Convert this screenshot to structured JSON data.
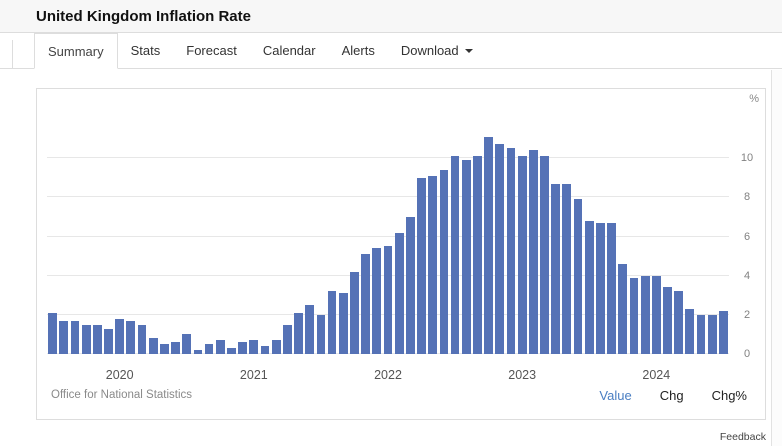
{
  "header": {
    "title": "United Kingdom Inflation Rate"
  },
  "tabs": [
    {
      "label": "Summary",
      "active": true
    },
    {
      "label": "Stats",
      "active": false
    },
    {
      "label": "Forecast",
      "active": false
    },
    {
      "label": "Calendar",
      "active": false
    },
    {
      "label": "Alerts",
      "active": false
    },
    {
      "label": "Download",
      "active": false,
      "has_caret": true
    }
  ],
  "chart_data": {
    "type": "bar",
    "title": "United Kingdom Inflation Rate",
    "unit": "%",
    "bar_color": "#5572b6",
    "grid": true,
    "ylim": [
      0,
      12
    ],
    "yticks": [
      0,
      2,
      4,
      6,
      8,
      10
    ],
    "xticks": [
      "2020",
      "2021",
      "2022",
      "2023",
      "2024"
    ],
    "x": [
      "2019-07",
      "2019-08",
      "2019-09",
      "2019-10",
      "2019-11",
      "2019-12",
      "2020-01",
      "2020-02",
      "2020-03",
      "2020-04",
      "2020-05",
      "2020-06",
      "2020-07",
      "2020-08",
      "2020-09",
      "2020-10",
      "2020-11",
      "2020-12",
      "2021-01",
      "2021-02",
      "2021-03",
      "2021-04",
      "2021-05",
      "2021-06",
      "2021-07",
      "2021-08",
      "2021-09",
      "2021-10",
      "2021-11",
      "2021-12",
      "2022-01",
      "2022-02",
      "2022-03",
      "2022-04",
      "2022-05",
      "2022-06",
      "2022-07",
      "2022-08",
      "2022-09",
      "2022-10",
      "2022-11",
      "2022-12",
      "2023-01",
      "2023-02",
      "2023-03",
      "2023-04",
      "2023-05",
      "2023-06",
      "2023-07",
      "2023-08",
      "2023-09",
      "2023-10",
      "2023-11",
      "2023-12",
      "2024-01",
      "2024-02",
      "2024-03",
      "2024-04",
      "2024-05",
      "2024-06",
      "2024-07"
    ],
    "values": [
      2.1,
      1.7,
      1.7,
      1.5,
      1.5,
      1.3,
      1.8,
      1.7,
      1.5,
      0.8,
      0.5,
      0.6,
      1.0,
      0.2,
      0.5,
      0.7,
      0.3,
      0.6,
      0.7,
      0.4,
      0.7,
      1.5,
      2.1,
      2.5,
      2.0,
      3.2,
      3.1,
      4.2,
      5.1,
      5.4,
      5.5,
      6.2,
      7.0,
      9.0,
      9.1,
      9.4,
      10.1,
      9.9,
      10.1,
      11.1,
      10.7,
      10.5,
      10.1,
      10.4,
      10.1,
      8.7,
      8.7,
      7.9,
      6.8,
      6.7,
      6.7,
      4.6,
      3.9,
      4.0,
      4.0,
      3.4,
      3.2,
      2.3,
      2.0,
      2.0,
      2.2
    ]
  },
  "footer": {
    "source": "Office for National Statistics",
    "modes": [
      {
        "label": "Value",
        "active": true
      },
      {
        "label": "Chg",
        "active": false
      },
      {
        "label": "Chg%",
        "active": false
      }
    ]
  },
  "feedback": {
    "label": "Feedback"
  },
  "colors": {
    "accent_blue": "#4a7ec2",
    "bar": "#5572b6"
  }
}
